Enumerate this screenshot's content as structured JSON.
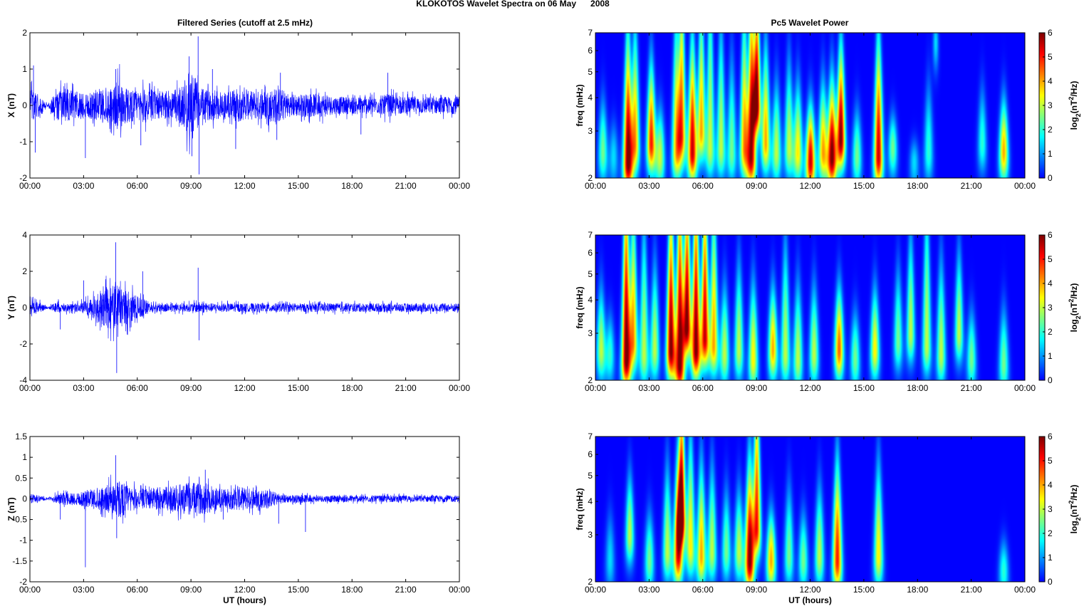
{
  "figure_title": "KLOKOTOS Wavelet Spectra on 06 May      2008",
  "left_column_title": "Filtered Series (cutoff at 2.5 mHz)",
  "right_column_title": "Pc5 Wavelet Power",
  "colors": {
    "trace": "#0000ff",
    "axes": "#000000",
    "background": "#00008f"
  },
  "time_ticks": [
    "00:00",
    "03:00",
    "06:00",
    "09:00",
    "12:00",
    "15:00",
    "18:00",
    "21:00",
    "00:00"
  ],
  "chart_data": [
    {
      "type": "line",
      "component": "X",
      "ylabel": "X (nT)",
      "xlabel": "",
      "xlim_hours": [
        0,
        24
      ],
      "ylim": [
        -2,
        2
      ],
      "yticks": [
        -2,
        -1,
        0,
        1,
        2
      ],
      "ytick_labels": [
        "-2",
        "-1",
        "0",
        "1",
        "2"
      ],
      "envelope_hours": [
        0,
        0.5,
        1,
        1.5,
        2,
        2.5,
        3,
        3.5,
        4,
        4.5,
        5,
        5.5,
        6,
        6.5,
        7,
        7.5,
        8,
        8.5,
        9,
        9.5,
        10,
        10.5,
        11,
        11.5,
        12,
        12.5,
        13,
        13.5,
        14,
        14.5,
        15,
        15.5,
        16,
        16.5,
        17,
        17.5,
        18,
        18.5,
        19,
        19.5,
        20,
        20.5,
        21,
        21.5,
        22,
        22.5,
        23,
        23.5,
        24
      ],
      "envelope_nT": [
        0.6,
        0.4,
        0.05,
        0.5,
        0.6,
        0.5,
        0.5,
        0.5,
        0.6,
        0.6,
        0.9,
        0.6,
        0.5,
        0.6,
        0.5,
        0.5,
        0.5,
        0.7,
        1.3,
        0.6,
        0.5,
        0.5,
        0.5,
        0.6,
        0.5,
        0.5,
        0.5,
        0.6,
        0.6,
        0.4,
        0.4,
        0.4,
        0.4,
        0.4,
        0.3,
        0.3,
        0.3,
        0.3,
        0.3,
        0.3,
        0.4,
        0.3,
        0.3,
        0.3,
        0.3,
        0.3,
        0.3,
        0.3,
        0.3
      ],
      "spikes": [
        {
          "t": 0.2,
          "v": 1.1
        },
        {
          "t": 0.3,
          "v": -1.3
        },
        {
          "t": 3.1,
          "v": -1.45
        },
        {
          "t": 4.8,
          "v": 1.0
        },
        {
          "t": 6.2,
          "v": -1.1
        },
        {
          "t": 8.9,
          "v": 1.35
        },
        {
          "t": 9.05,
          "v": -1.4
        },
        {
          "t": 9.4,
          "v": 1.9
        },
        {
          "t": 9.45,
          "v": -1.9
        },
        {
          "t": 10.2,
          "v": 1.0
        },
        {
          "t": 11.5,
          "v": -1.2
        },
        {
          "t": 13.8,
          "v": -0.95
        },
        {
          "t": 14.0,
          "v": 0.9
        },
        {
          "t": 18.5,
          "v": -0.8
        },
        {
          "t": 20.0,
          "v": 0.9
        }
      ]
    },
    {
      "type": "line",
      "component": "Y",
      "ylabel": "Y (nT)",
      "xlabel": "",
      "xlim_hours": [
        0,
        24
      ],
      "ylim": [
        -4,
        4
      ],
      "yticks": [
        -4,
        -2,
        0,
        2,
        4
      ],
      "ytick_labels": [
        "-4",
        "-2",
        "0",
        "2",
        "4"
      ],
      "envelope_hours": [
        0,
        0.5,
        1,
        1.5,
        2,
        2.5,
        3,
        3.5,
        4,
        4.5,
        5,
        5.5,
        6,
        6.5,
        7,
        7.5,
        8,
        8.5,
        9,
        9.5,
        10,
        10.5,
        11,
        11.5,
        12,
        12.5,
        13,
        13.5,
        14,
        14.5,
        15,
        15.5,
        16,
        16.5,
        17,
        17.5,
        18,
        18.5,
        19,
        19.5,
        20,
        20.5,
        21,
        21.5,
        22,
        22.5,
        23,
        23.5,
        24
      ],
      "envelope_nT": [
        0.5,
        0.4,
        0.05,
        0.4,
        0.3,
        0.3,
        0.4,
        0.7,
        1.2,
        1.6,
        1.5,
        1.2,
        0.8,
        0.5,
        0.3,
        0.3,
        0.3,
        0.3,
        0.3,
        0.4,
        0.3,
        0.3,
        0.3,
        0.3,
        0.3,
        0.3,
        0.3,
        0.3,
        0.3,
        0.3,
        0.3,
        0.3,
        0.3,
        0.3,
        0.3,
        0.3,
        0.3,
        0.3,
        0.3,
        0.3,
        0.3,
        0.3,
        0.3,
        0.3,
        0.3,
        0.3,
        0.3,
        0.3,
        0.3
      ],
      "spikes": [
        {
          "t": 1.7,
          "v": -1.2
        },
        {
          "t": 3.0,
          "v": 1.5
        },
        {
          "t": 4.8,
          "v": 3.6
        },
        {
          "t": 4.85,
          "v": -3.6
        },
        {
          "t": 5.6,
          "v": -1.1
        },
        {
          "t": 6.3,
          "v": 2.0
        },
        {
          "t": 9.4,
          "v": 2.2
        },
        {
          "t": 9.45,
          "v": -1.8
        }
      ]
    },
    {
      "type": "line",
      "component": "Z",
      "ylabel": "Z (nT)",
      "xlabel": "UT (hours)",
      "xlim_hours": [
        0,
        24
      ],
      "ylim": [
        -2,
        1.5
      ],
      "yticks": [
        -2,
        -1.5,
        -1,
        -0.5,
        0,
        0.5,
        1,
        1.5
      ],
      "ytick_labels": [
        "-2",
        "-1.5",
        "-1",
        "-0.5",
        "0",
        "0.5",
        "1",
        "1.5"
      ],
      "envelope_hours": [
        0,
        0.5,
        1,
        1.5,
        2,
        2.5,
        3,
        3.5,
        4,
        4.5,
        5,
        5.5,
        6,
        6.5,
        7,
        7.5,
        8,
        8.5,
        9,
        9.5,
        10,
        10.5,
        11,
        11.5,
        12,
        12.5,
        13,
        13.5,
        14,
        14.5,
        15,
        15.5,
        16,
        16.5,
        17,
        17.5,
        18,
        18.5,
        19,
        19.5,
        20,
        20.5,
        21,
        21.5,
        22,
        22.5,
        23,
        23.5,
        24
      ],
      "envelope_nT": [
        0.15,
        0.1,
        0.02,
        0.15,
        0.2,
        0.2,
        0.25,
        0.3,
        0.35,
        0.45,
        0.6,
        0.4,
        0.3,
        0.3,
        0.35,
        0.35,
        0.4,
        0.45,
        0.5,
        0.45,
        0.45,
        0.35,
        0.3,
        0.35,
        0.35,
        0.3,
        0.3,
        0.25,
        0.15,
        0.12,
        0.12,
        0.12,
        0.1,
        0.1,
        0.1,
        0.1,
        0.1,
        0.1,
        0.1,
        0.1,
        0.1,
        0.1,
        0.1,
        0.1,
        0.1,
        0.1,
        0.1,
        0.1,
        0.1
      ],
      "spikes": [
        {
          "t": 1.7,
          "v": -0.5
        },
        {
          "t": 3.1,
          "v": -1.65
        },
        {
          "t": 4.8,
          "v": 1.05
        },
        {
          "t": 4.85,
          "v": -0.95
        },
        {
          "t": 9.8,
          "v": 0.7
        },
        {
          "t": 10.8,
          "v": -0.5
        },
        {
          "t": 13.9,
          "v": -0.6
        },
        {
          "t": 15.4,
          "v": -0.8
        }
      ]
    },
    {
      "type": "heatmap",
      "component": "X",
      "ylabel": "freq (mHz)",
      "xlabel": "",
      "xlim_hours": [
        0,
        24
      ],
      "ylim_mHz": [
        2,
        7
      ],
      "yscale": "log",
      "yticks": [
        2,
        3,
        4,
        5,
        6,
        7
      ],
      "ytick_labels": [
        "2",
        "3",
        "4",
        "5",
        "6",
        "7"
      ],
      "colorbar_label": "log2(nT^2/Hz)",
      "colorbar_ticks": [
        0,
        1,
        2,
        3,
        4,
        5,
        6
      ],
      "colorbar_tick_labels": [
        "0",
        "1",
        "2",
        "3",
        "4",
        "5",
        "6"
      ],
      "clim": [
        0,
        6
      ],
      "colormap": "jet",
      "blobs": [
        {
          "t": 0.4,
          "f": 2.5,
          "p": 2.5,
          "top": 3.2
        },
        {
          "t": 1.0,
          "f": 2.4,
          "p": 1.5,
          "top": 2.8
        },
        {
          "t": 1.8,
          "f": 2.3,
          "p": 6,
          "top": 4.5
        },
        {
          "t": 2.2,
          "f": 2.7,
          "p": 4,
          "top": 5
        },
        {
          "t": 3.1,
          "f": 2.7,
          "p": 5,
          "top": 4
        },
        {
          "t": 3.6,
          "f": 2.4,
          "p": 3,
          "top": 3
        },
        {
          "t": 4.5,
          "f": 2.5,
          "p": 3.5,
          "top": 5.5
        },
        {
          "t": 4.8,
          "f": 2.9,
          "p": 4.5,
          "top": 7
        },
        {
          "t": 5.4,
          "f": 2.5,
          "p": 5.5,
          "top": 4.5
        },
        {
          "t": 5.9,
          "f": 3.0,
          "p": 4,
          "top": 6
        },
        {
          "t": 6.4,
          "f": 2.6,
          "p": 3,
          "top": 7
        },
        {
          "t": 7.0,
          "f": 2.6,
          "p": 3,
          "top": 5
        },
        {
          "t": 7.6,
          "f": 2.5,
          "p": 2.5,
          "top": 4
        },
        {
          "t": 8.3,
          "f": 2.6,
          "p": 4,
          "top": 5.5
        },
        {
          "t": 8.7,
          "f": 2.4,
          "p": 5.5,
          "top": 7
        },
        {
          "t": 9.0,
          "f": 3.8,
          "p": 6,
          "top": 7
        },
        {
          "t": 9.5,
          "f": 2.7,
          "p": 4,
          "top": 4.5
        },
        {
          "t": 10.1,
          "f": 2.5,
          "p": 3,
          "top": 3.5
        },
        {
          "t": 10.8,
          "f": 2.6,
          "p": 3,
          "top": 4
        },
        {
          "t": 11.3,
          "f": 2.5,
          "p": 3.5,
          "top": 3.5
        },
        {
          "t": 12.0,
          "f": 2.3,
          "p": 5.5,
          "top": 3
        },
        {
          "t": 12.7,
          "f": 2.5,
          "p": 4,
          "top": 3.5
        },
        {
          "t": 13.2,
          "f": 2.4,
          "p": 6,
          "top": 3.5
        },
        {
          "t": 13.7,
          "f": 2.8,
          "p": 6,
          "top": 4.5
        },
        {
          "t": 14.6,
          "f": 2.4,
          "p": 2.5,
          "top": 3
        },
        {
          "t": 15.8,
          "f": 2.4,
          "p": 5.5,
          "top": 4.5
        },
        {
          "t": 16.6,
          "f": 2.6,
          "p": 2.5,
          "top": 3
        },
        {
          "t": 18.6,
          "f": 2.5,
          "p": 2,
          "top": 3.5
        },
        {
          "t": 19.0,
          "f": 6.5,
          "p": 1.5,
          "top": 7
        },
        {
          "t": 21.6,
          "f": 2.7,
          "p": 2,
          "top": 3.5
        },
        {
          "t": 22.8,
          "f": 2.5,
          "p": 4,
          "top": 3.2
        },
        {
          "t": 17.8,
          "f": 2.3,
          "p": 1.5,
          "top": 2.5
        }
      ]
    },
    {
      "type": "heatmap",
      "component": "Y",
      "ylabel": "freq (mHz)",
      "xlabel": "",
      "xlim_hours": [
        0,
        24
      ],
      "ylim_mHz": [
        2,
        7
      ],
      "yscale": "log",
      "yticks": [
        2,
        3,
        4,
        5,
        6,
        7
      ],
      "ytick_labels": [
        "2",
        "3",
        "4",
        "5",
        "6",
        "7"
      ],
      "colorbar_label": "log2(nT^2/Hz)",
      "colorbar_ticks": [
        0,
        1,
        2,
        3,
        4,
        5,
        6
      ],
      "colorbar_tick_labels": [
        "0",
        "1",
        "2",
        "3",
        "4",
        "5",
        "6"
      ],
      "clim": [
        0,
        6
      ],
      "colormap": "jet",
      "blobs": [
        {
          "t": 0.3,
          "f": 2.6,
          "p": 3,
          "top": 3.5
        },
        {
          "t": 0.8,
          "f": 2.5,
          "p": 2,
          "top": 3
        },
        {
          "t": 1.7,
          "f": 2.4,
          "p": 6,
          "top": 7
        },
        {
          "t": 2.1,
          "f": 2.8,
          "p": 4,
          "top": 6
        },
        {
          "t": 2.7,
          "f": 2.5,
          "p": 3,
          "top": 5
        },
        {
          "t": 3.3,
          "f": 2.6,
          "p": 3,
          "top": 4
        },
        {
          "t": 4.2,
          "f": 2.6,
          "p": 6,
          "top": 6
        },
        {
          "t": 4.7,
          "f": 2.3,
          "p": 6,
          "top": 7
        },
        {
          "t": 5.1,
          "f": 3.2,
          "p": 6,
          "top": 7
        },
        {
          "t": 5.6,
          "f": 2.6,
          "p": 6,
          "top": 7
        },
        {
          "t": 6.1,
          "f": 2.9,
          "p": 5.5,
          "top": 7
        },
        {
          "t": 6.6,
          "f": 2.7,
          "p": 4,
          "top": 6
        },
        {
          "t": 7.2,
          "f": 2.5,
          "p": 3,
          "top": 3.5
        },
        {
          "t": 8.0,
          "f": 2.6,
          "p": 3,
          "top": 4
        },
        {
          "t": 8.8,
          "f": 2.4,
          "p": 3.5,
          "top": 3.5
        },
        {
          "t": 9.9,
          "f": 2.6,
          "p": 4,
          "top": 3.5
        },
        {
          "t": 10.6,
          "f": 2.5,
          "p": 3,
          "top": 4.5
        },
        {
          "t": 11.3,
          "f": 2.4,
          "p": 3,
          "top": 3.5
        },
        {
          "t": 12.2,
          "f": 2.5,
          "p": 3,
          "top": 3.5
        },
        {
          "t": 13.6,
          "f": 2.6,
          "p": 4.5,
          "top": 3.5
        },
        {
          "t": 14.5,
          "f": 2.4,
          "p": 2.5,
          "top": 3
        },
        {
          "t": 15.6,
          "f": 2.6,
          "p": 3.5,
          "top": 3.5
        },
        {
          "t": 16.9,
          "f": 2.8,
          "p": 2.5,
          "top": 4
        },
        {
          "t": 17.6,
          "f": 3.0,
          "p": 3,
          "top": 5
        },
        {
          "t": 18.5,
          "f": 2.7,
          "p": 3,
          "top": 6
        },
        {
          "t": 19.3,
          "f": 2.5,
          "p": 3,
          "top": 4
        },
        {
          "t": 20.3,
          "f": 3.0,
          "p": 3,
          "top": 4.5
        },
        {
          "t": 21.0,
          "f": 2.4,
          "p": 2.5,
          "top": 3
        },
        {
          "t": 22.8,
          "f": 2.3,
          "p": 2.5,
          "top": 3
        }
      ]
    },
    {
      "type": "heatmap",
      "component": "Z",
      "ylabel": "freq (mHz)",
      "xlabel": "UT (hours)",
      "xlim_hours": [
        0,
        24
      ],
      "ylim_mHz": [
        2,
        7
      ],
      "yscale": "log",
      "yticks": [
        2,
        3,
        4,
        5,
        6,
        7
      ],
      "ytick_labels": [
        "2",
        "3",
        "4",
        "5",
        "6",
        "7"
      ],
      "colorbar_label": "log2(nT^2/Hz)",
      "colorbar_ticks": [
        0,
        1,
        2,
        3,
        4,
        5,
        6
      ],
      "colorbar_tick_labels": [
        "0",
        "1",
        "2",
        "3",
        "4",
        "5",
        "6"
      ],
      "clim": [
        0,
        6
      ],
      "colormap": "jet",
      "blobs": [
        {
          "t": 0.8,
          "f": 2.4,
          "p": 1.5,
          "top": 3
        },
        {
          "t": 1.9,
          "f": 3.0,
          "p": 3,
          "top": 4
        },
        {
          "t": 3.0,
          "f": 2.4,
          "p": 2.5,
          "top": 3
        },
        {
          "t": 4.0,
          "f": 2.6,
          "p": 3,
          "top": 4
        },
        {
          "t": 4.6,
          "f": 2.5,
          "p": 5,
          "top": 4
        },
        {
          "t": 4.8,
          "f": 3.5,
          "p": 6,
          "top": 7
        },
        {
          "t": 5.3,
          "f": 2.7,
          "p": 3.5,
          "top": 5
        },
        {
          "t": 5.9,
          "f": 2.5,
          "p": 4,
          "top": 4
        },
        {
          "t": 6.5,
          "f": 2.6,
          "p": 3,
          "top": 4
        },
        {
          "t": 7.3,
          "f": 2.6,
          "p": 2.5,
          "top": 3.5
        },
        {
          "t": 8.0,
          "f": 2.6,
          "p": 3,
          "top": 3.5
        },
        {
          "t": 8.6,
          "f": 2.4,
          "p": 6,
          "top": 4
        },
        {
          "t": 9.0,
          "f": 3.2,
          "p": 5,
          "top": 7
        },
        {
          "t": 9.8,
          "f": 2.4,
          "p": 4,
          "top": 3
        },
        {
          "t": 10.8,
          "f": 2.5,
          "p": 2.5,
          "top": 3.5
        },
        {
          "t": 11.6,
          "f": 2.4,
          "p": 2.5,
          "top": 3
        },
        {
          "t": 12.5,
          "f": 2.5,
          "p": 3,
          "top": 3.5
        },
        {
          "t": 13.5,
          "f": 2.4,
          "p": 5,
          "top": 4
        },
        {
          "t": 15.8,
          "f": 2.5,
          "p": 3.5,
          "top": 4
        },
        {
          "t": 22.8,
          "f": 2.2,
          "p": 2,
          "top": 2.5
        }
      ]
    }
  ]
}
